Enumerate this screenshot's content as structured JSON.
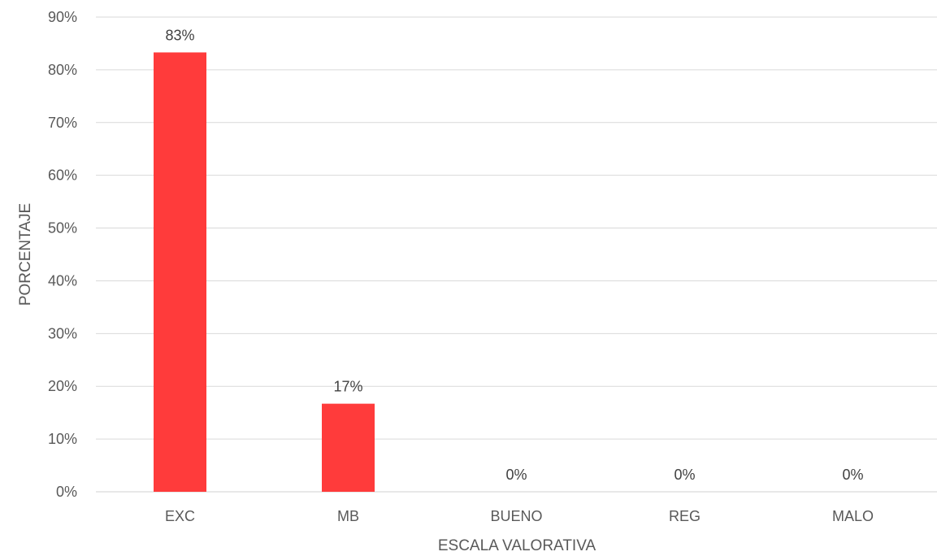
{
  "chart_data": {
    "type": "bar",
    "categories": [
      "EXC",
      "MB",
      "BUENO",
      "REG",
      "MALO"
    ],
    "values": [
      83.3,
      16.7,
      0,
      0,
      0
    ],
    "data_labels": [
      "83%",
      "17%",
      "0%",
      "0%",
      "0%"
    ],
    "xlabel": "ESCALA VALORATIVA",
    "ylabel": "PORCENTAJE",
    "ylim": [
      0,
      90
    ],
    "y_ticks": [
      0,
      10,
      20,
      30,
      40,
      50,
      60,
      70,
      80,
      90
    ],
    "y_tick_labels": [
      "0%",
      "10%",
      "20%",
      "30%",
      "40%",
      "50%",
      "60%",
      "70%",
      "80%",
      "90%"
    ],
    "grid": true,
    "legend": "none",
    "bar_color": "#ff3b3b"
  }
}
